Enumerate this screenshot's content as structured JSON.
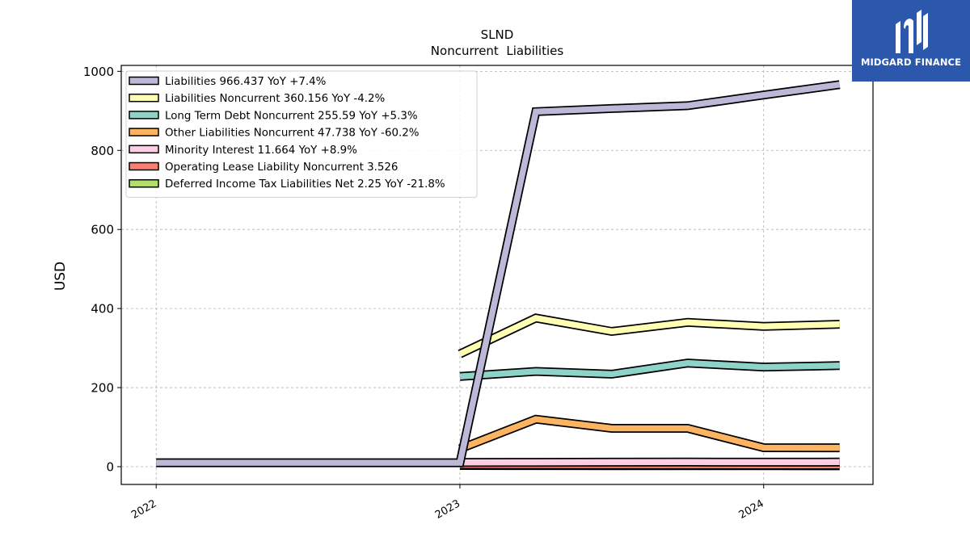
{
  "chart_data": {
    "type": "line",
    "title": "SLND",
    "subtitle": "Noncurrent  Liabilities",
    "ylabel": "USD",
    "xlabel": "",
    "ylim": [
      -45,
      1015
    ],
    "xlim": [
      2021.885,
      2024.36
    ],
    "yticks": [
      0,
      200,
      400,
      600,
      800,
      1000
    ],
    "xticks": [
      {
        "value": 2022.0,
        "label": "2022"
      },
      {
        "value": 2023.0,
        "label": "2023"
      },
      {
        "value": 2024.0,
        "label": "2024"
      }
    ],
    "grid": true,
    "legend_position": "upper-left",
    "series": [
      {
        "name": "Liabilities  966.437 YoY +7.4%",
        "color": "#bcb8d8",
        "x": [
          2022.0,
          2023.0,
          2023.25,
          2023.5,
          2023.75,
          2024.0,
          2024.25
        ],
        "y": [
          10,
          10,
          898,
          906,
          913,
          940,
          966.437
        ]
      },
      {
        "name": "Liabilities Noncurrent  360.156 YoY -4.2%",
        "color": "#ffffb4",
        "x": [
          2023.0,
          2023.25,
          2023.5,
          2023.75,
          2024.0,
          2024.25
        ],
        "y": [
          285,
          376,
          342,
          365,
          355,
          360.156
        ]
      },
      {
        "name": "Long Term Debt Noncurrent  255.59 YoY +5.3%",
        "color": "#8dd3c7",
        "x": [
          2023.0,
          2023.25,
          2023.5,
          2023.75,
          2024.0,
          2024.25
        ],
        "y": [
          228,
          241,
          234,
          262,
          252,
          255.59
        ]
      },
      {
        "name": "Other Liabilities Noncurrent  47.738 YoY -60.2%",
        "color": "#fdb462",
        "x": [
          2023.0,
          2023.25,
          2023.5,
          2023.75,
          2024.0,
          2024.25
        ],
        "y": [
          45,
          120,
          97,
          97,
          48,
          47.738
        ]
      },
      {
        "name": "Minority Interest  11.664 YoY +8.9%",
        "color": "#fccde5",
        "x": [
          2023.0,
          2023.25,
          2023.5,
          2023.75,
          2024.0,
          2024.25
        ],
        "y": [
          10.7,
          11.0,
          11.3,
          11.5,
          11.4,
          11.664
        ]
      },
      {
        "name": "Operating Lease Liability Noncurrent  3.526",
        "color": "#fb8072",
        "x": [
          2023.0,
          2023.25,
          2023.5,
          2023.75,
          2024.0,
          2024.25
        ],
        "y": [
          4.5,
          4.3,
          4.0,
          3.9,
          3.7,
          3.526
        ]
      },
      {
        "name": "Deferred Income Tax Liabilities Net  2.25 YoY -21.8%",
        "color": "#b3de69",
        "x": [
          2023.0,
          2023.25,
          2023.5,
          2023.75,
          2024.0,
          2024.25
        ],
        "y": [
          2.9,
          2.8,
          2.6,
          2.5,
          2.4,
          2.25
        ]
      }
    ]
  },
  "logo": {
    "text": "MIDGARD FINANCE",
    "background": "#2b58ad"
  }
}
